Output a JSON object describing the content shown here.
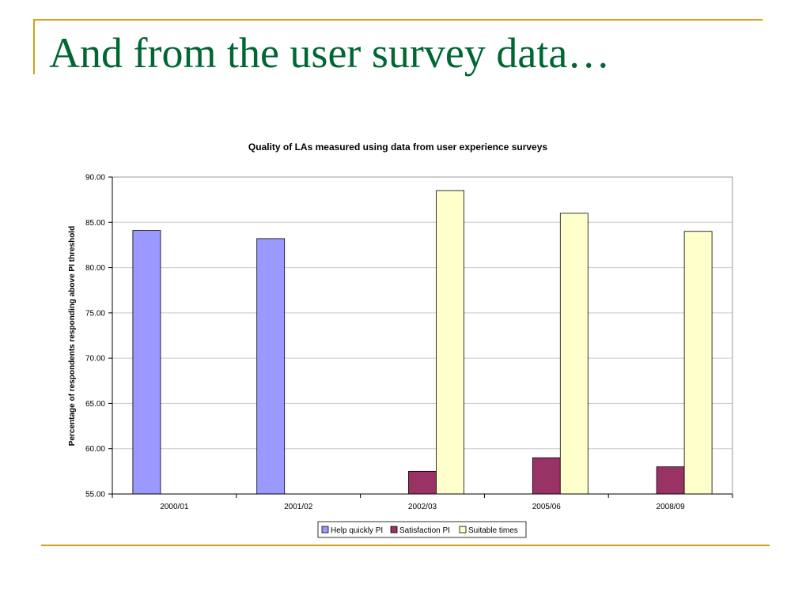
{
  "slide": {
    "title": "And from the user survey data…"
  },
  "chart_data": {
    "type": "bar",
    "title": "Quality of LAs measured using data from user experience surveys",
    "xlabel": "",
    "ylabel": "Percentage of respondents responding above PI threshold",
    "ylim": [
      55,
      90
    ],
    "y_ticks": [
      "55.00",
      "60.00",
      "65.00",
      "70.00",
      "75.00",
      "80.00",
      "85.00",
      "90.00"
    ],
    "categories": [
      "2000/01",
      "2001/02",
      "2002/03",
      "2005/06",
      "2008/09"
    ],
    "series": [
      {
        "name": "Help quickly PI",
        "color": "#9999ff",
        "values": [
          84.1,
          83.2,
          null,
          null,
          null
        ]
      },
      {
        "name": "Satisfaction PI",
        "color": "#993366",
        "values": [
          null,
          null,
          57.5,
          59.0,
          58.0
        ]
      },
      {
        "name": "Suitable times",
        "color": "#ffffcc",
        "values": [
          null,
          null,
          88.5,
          86.0,
          84.0
        ]
      }
    ],
    "grid": true,
    "legend_position": "bottom"
  }
}
